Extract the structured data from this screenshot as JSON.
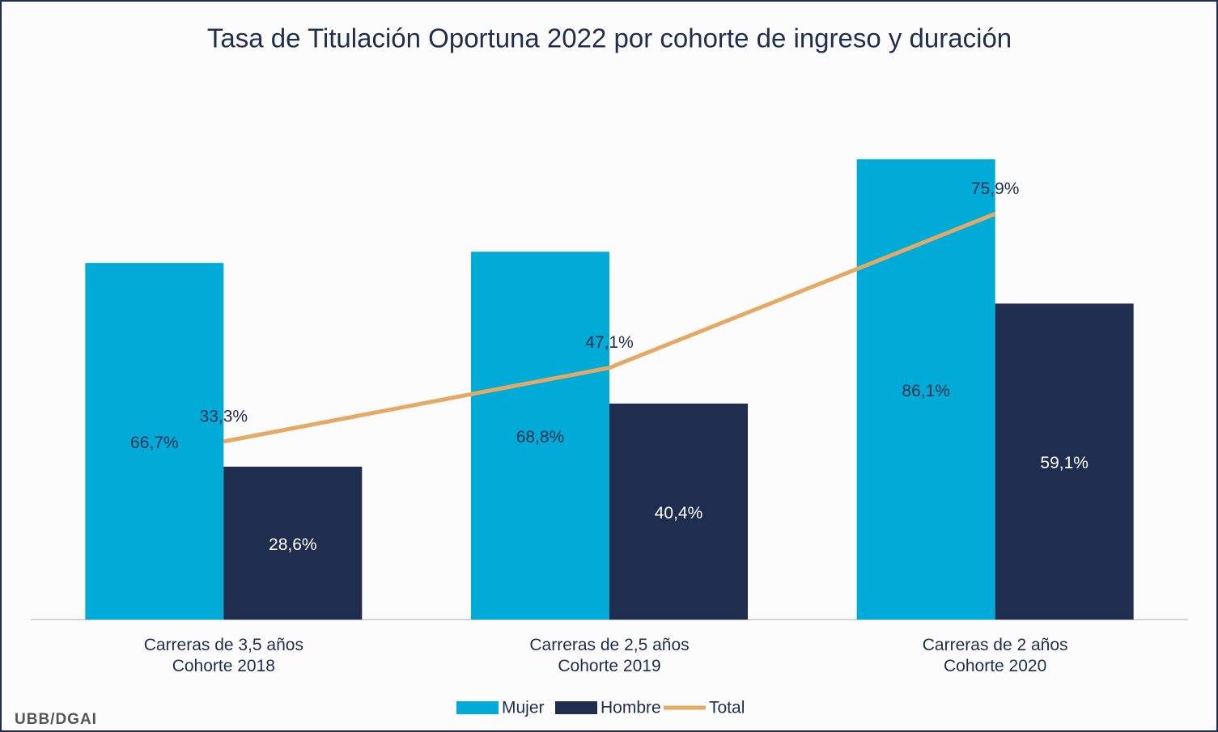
{
  "chart_data": {
    "type": "bar-line",
    "title": "Tasa de Titulación Oportuna 2022 por cohorte de ingreso y duración",
    "categories": [
      "Carreras de 3,5 años\nCohorte 2018",
      "Carreras de 2,5 años\nCohorte 2019",
      "Carreras de 2 años\nCohorte 2020"
    ],
    "series": [
      {
        "name": "Mujer",
        "type": "bar",
        "color": "#00acd7",
        "label_color": "#1f2d4e",
        "values": [
          66.7,
          68.8,
          86.1
        ],
        "value_labels": [
          "66,7%",
          "68,8%",
          "86,1%"
        ]
      },
      {
        "name": "Hombre",
        "type": "bar",
        "color": "#1f2d4e",
        "label_color": "#ffffff",
        "values": [
          28.6,
          40.4,
          59.1
        ],
        "value_labels": [
          "28,6%",
          "40,4%",
          "59,1%"
        ]
      },
      {
        "name": "Total",
        "type": "line",
        "color": "#e5a964",
        "label_color": "#1f2d4e",
        "values": [
          33.3,
          47.1,
          75.9
        ],
        "value_labels": [
          "33,3%",
          "47,1%",
          "75,9%"
        ]
      }
    ],
    "ylim": [
      0,
      100
    ],
    "legend": "bottom",
    "source": "UBB/DGAI"
  }
}
